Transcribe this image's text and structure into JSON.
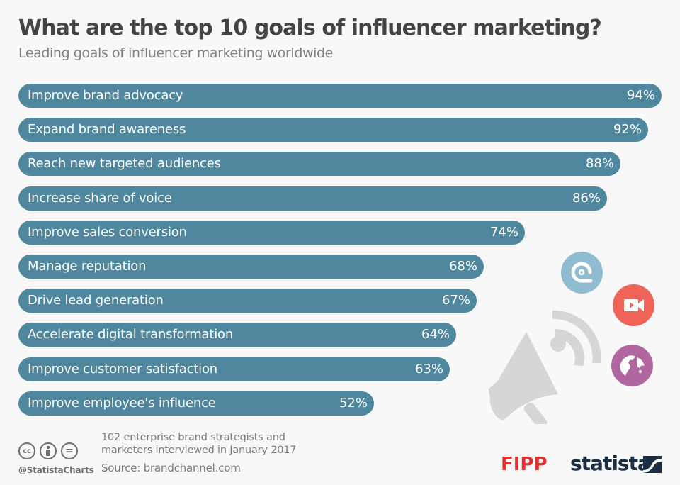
{
  "header": {
    "title": "What are the top 10 goals of influencer marketing?",
    "subtitle": "Leading goals of influencer marketing worldwide"
  },
  "bars": [
    {
      "label": "Improve brand advocacy",
      "value_label": "94%"
    },
    {
      "label": "Expand brand awareness",
      "value_label": "92%"
    },
    {
      "label": "Reach new targeted audiences",
      "value_label": "88%"
    },
    {
      "label": "Increase share of voice",
      "value_label": "86%"
    },
    {
      "label": "Improve sales conversion",
      "value_label": "74%"
    },
    {
      "label": "Manage reputation",
      "value_label": "68%"
    },
    {
      "label": "Drive lead generation",
      "value_label": "67%"
    },
    {
      "label": "Accelerate digital transformation",
      "value_label": "64%"
    },
    {
      "label": "Improve customer satisfaction",
      "value_label": "63%"
    },
    {
      "label": "Improve employee's influence",
      "value_label": "52%"
    }
  ],
  "decorations": {
    "icons": [
      "megaphone-icon",
      "at-sign-icon",
      "video-camera-icon",
      "globe-icon"
    ],
    "colors": {
      "at": "#8fbccf",
      "video": "#ef6459",
      "globe": "#b0679f",
      "megaphone": "#d6d6d6"
    }
  },
  "footer": {
    "note": "102 enterprise brand strategists and marketers interviewed in January 2017",
    "note_line1": "102 enterprise brand strategists and",
    "note_line2": "marketers interviewed in January 2017",
    "source": "Source: brandchannel.com",
    "handle": "@StatistaCharts",
    "license_icons": [
      "cc-icon",
      "by-icon",
      "nd-icon"
    ],
    "cc_text": "cc",
    "nd_text": "=",
    "logos": {
      "fipp": "FIPP",
      "statista": "statista"
    }
  },
  "colors": {
    "bar": "#4f879f",
    "background": "#f8f8f9",
    "title": "#444444",
    "subtitle": "#808080"
  },
  "chart_data": {
    "type": "bar",
    "orientation": "horizontal",
    "title": "What are the top 10 goals of influencer marketing?",
    "subtitle": "Leading goals of influencer marketing worldwide",
    "categories": [
      "Improve brand advocacy",
      "Expand brand awareness",
      "Reach new targeted audiences",
      "Increase share of voice",
      "Improve sales conversion",
      "Manage reputation",
      "Drive lead generation",
      "Accelerate digital transformation",
      "Improve customer satisfaction",
      "Improve employee's influence"
    ],
    "values": [
      94,
      92,
      88,
      86,
      74,
      68,
      67,
      64,
      63,
      52
    ],
    "unit": "%",
    "xlabel": "",
    "ylabel": "",
    "xlim": [
      0,
      100
    ],
    "grid": false,
    "legend": null,
    "data_labels": true,
    "note": "102 enterprise brand strategists and marketers interviewed in January 2017",
    "source": "Source: brandchannel.com"
  }
}
